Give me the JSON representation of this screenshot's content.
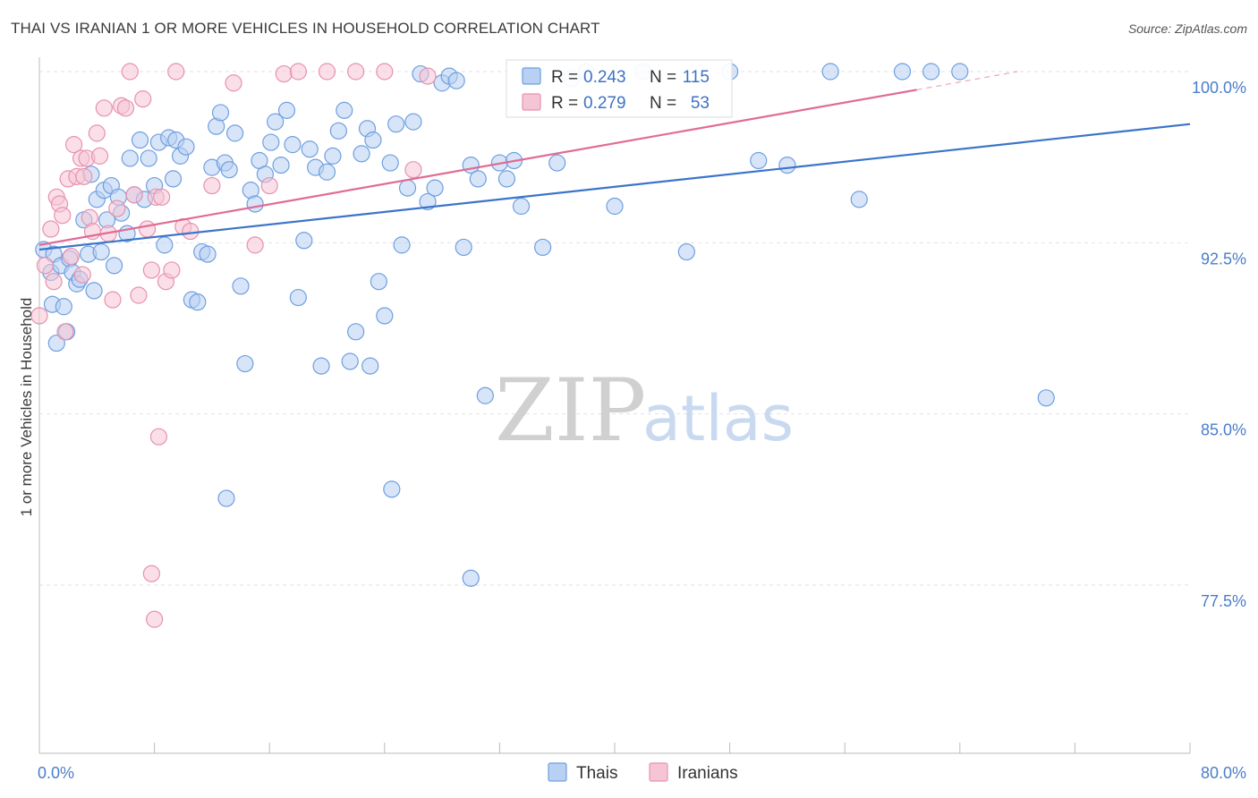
{
  "header": {
    "title": "THAI VS IRANIAN 1 OR MORE VEHICLES IN HOUSEHOLD CORRELATION CHART",
    "source": "Source: ZipAtlas.com"
  },
  "watermark": {
    "zip": "ZIP",
    "atlas": "atlas"
  },
  "chart_data": {
    "type": "scatter",
    "ylabel": "1 or more Vehicles in Household",
    "xlim": [
      0,
      80
    ],
    "ylim": [
      70,
      101.2
    ],
    "x_tick_labels": {
      "min": "0.0%",
      "max": "80.0%"
    },
    "y_ticks": [
      {
        "value": 100,
        "label": "100.0%"
      },
      {
        "value": 92.5,
        "label": "92.5%"
      },
      {
        "value": 85,
        "label": "85.0%"
      },
      {
        "value": 77.5,
        "label": "77.5%"
      }
    ],
    "legend_placement": "bottom-center",
    "stats_box": [
      {
        "series": "Thais",
        "r_label": "R = ",
        "r": "0.243",
        "n_label": "N = ",
        "n": "115"
      },
      {
        "series": "Iranians",
        "r_label": "R = ",
        "r": "0.279",
        "n_label": "N = ",
        "n": "53"
      }
    ],
    "series": [
      {
        "name": "Thais",
        "color": "#6e9fe0",
        "fill": "#b8d0f2",
        "line_color": "#3b74c9",
        "trend": [
          [
            0,
            92.2
          ],
          [
            80,
            97.7
          ]
        ],
        "points": [
          [
            0.3,
            92.2
          ],
          [
            0.8,
            91.2
          ],
          [
            0.9,
            89.8
          ],
          [
            1.0,
            92.0
          ],
          [
            1.2,
            88.1
          ],
          [
            1.5,
            91.5
          ],
          [
            1.7,
            89.7
          ],
          [
            1.9,
            88.6
          ],
          [
            2.1,
            91.8
          ],
          [
            2.3,
            91.2
          ],
          [
            2.6,
            90.7
          ],
          [
            2.8,
            90.9
          ],
          [
            3.1,
            93.5
          ],
          [
            3.4,
            92.0
          ],
          [
            3.6,
            95.5
          ],
          [
            3.8,
            90.4
          ],
          [
            4.0,
            94.4
          ],
          [
            4.3,
            92.1
          ],
          [
            4.5,
            94.8
          ],
          [
            4.7,
            93.5
          ],
          [
            5.0,
            95.0
          ],
          [
            5.2,
            91.5
          ],
          [
            5.5,
            94.5
          ],
          [
            5.7,
            93.8
          ],
          [
            6.1,
            92.9
          ],
          [
            6.3,
            96.2
          ],
          [
            6.6,
            94.6
          ],
          [
            7.0,
            97.0
          ],
          [
            7.3,
            94.4
          ],
          [
            7.6,
            96.2
          ],
          [
            8.0,
            95.0
          ],
          [
            8.3,
            96.9
          ],
          [
            8.7,
            92.4
          ],
          [
            9.0,
            97.1
          ],
          [
            9.3,
            95.3
          ],
          [
            9.5,
            97.0
          ],
          [
            9.8,
            96.3
          ],
          [
            10.2,
            96.7
          ],
          [
            10.6,
            90.0
          ],
          [
            11.0,
            89.9
          ],
          [
            11.3,
            92.1
          ],
          [
            11.7,
            92.0
          ],
          [
            12.0,
            95.8
          ],
          [
            12.3,
            97.6
          ],
          [
            12.6,
            98.2
          ],
          [
            12.9,
            96.0
          ],
          [
            13.2,
            95.7
          ],
          [
            13.6,
            97.3
          ],
          [
            14.0,
            90.6
          ],
          [
            14.3,
            87.2
          ],
          [
            14.7,
            94.8
          ],
          [
            15.0,
            94.2
          ],
          [
            15.3,
            96.1
          ],
          [
            15.7,
            95.5
          ],
          [
            16.1,
            96.9
          ],
          [
            16.4,
            97.8
          ],
          [
            16.8,
            95.9
          ],
          [
            17.2,
            98.3
          ],
          [
            17.6,
            96.8
          ],
          [
            18.0,
            90.1
          ],
          [
            18.4,
            92.6
          ],
          [
            18.8,
            96.6
          ],
          [
            19.2,
            95.8
          ],
          [
            19.6,
            87.1
          ],
          [
            20.0,
            95.6
          ],
          [
            20.4,
            96.3
          ],
          [
            20.8,
            97.4
          ],
          [
            21.2,
            98.3
          ],
          [
            21.6,
            87.3
          ],
          [
            22.0,
            88.6
          ],
          [
            22.4,
            96.4
          ],
          [
            22.8,
            97.5
          ],
          [
            23.2,
            97.0
          ],
          [
            23.6,
            90.8
          ],
          [
            24.0,
            89.3
          ],
          [
            24.4,
            96.0
          ],
          [
            24.8,
            97.7
          ],
          [
            25.2,
            92.4
          ],
          [
            25.6,
            94.9
          ],
          [
            26.0,
            97.8
          ],
          [
            26.5,
            99.9
          ],
          [
            27.0,
            94.3
          ],
          [
            27.5,
            94.9
          ],
          [
            28.0,
            99.5
          ],
          [
            28.5,
            99.8
          ],
          [
            29.0,
            99.6
          ],
          [
            29.5,
            92.3
          ],
          [
            30.0,
            95.9
          ],
          [
            30.5,
            95.3
          ],
          [
            31.0,
            85.8
          ],
          [
            32.0,
            96.0
          ],
          [
            32.5,
            95.3
          ],
          [
            33.0,
            96.1
          ],
          [
            33.5,
            94.1
          ],
          [
            34.0,
            99.9
          ],
          [
            35.0,
            92.3
          ],
          [
            36.0,
            96.0
          ],
          [
            37.0,
            99.7
          ],
          [
            38.0,
            100.0
          ],
          [
            40.0,
            94.1
          ],
          [
            42.0,
            100.0
          ],
          [
            45.0,
            92.1
          ],
          [
            48.0,
            100.0
          ],
          [
            50.0,
            96.1
          ],
          [
            52.0,
            95.9
          ],
          [
            55.0,
            100.0
          ],
          [
            57.0,
            94.4
          ],
          [
            60.0,
            100.0
          ],
          [
            62.0,
            100.0
          ],
          [
            64.0,
            100.0
          ],
          [
            13.0,
            81.3
          ],
          [
            24.5,
            81.7
          ],
          [
            30.0,
            77.8
          ],
          [
            23.0,
            87.1
          ],
          [
            70.0,
            85.7
          ]
        ]
      },
      {
        "name": "Iranians",
        "color": "#e891ae",
        "fill": "#f6c5d5",
        "line_color": "#e06b95",
        "trend": [
          [
            0,
            92.4
          ],
          [
            61,
            99.2
          ]
        ],
        "trend_dashed": [
          [
            61,
            99.2
          ],
          [
            68,
            100.0
          ]
        ],
        "points": [
          [
            0.0,
            89.3
          ],
          [
            0.4,
            91.5
          ],
          [
            0.8,
            93.1
          ],
          [
            1.0,
            90.8
          ],
          [
            1.2,
            94.5
          ],
          [
            1.4,
            94.2
          ],
          [
            1.6,
            93.7
          ],
          [
            1.8,
            88.6
          ],
          [
            2.0,
            95.3
          ],
          [
            2.2,
            91.9
          ],
          [
            2.4,
            96.8
          ],
          [
            2.6,
            95.4
          ],
          [
            2.9,
            96.2
          ],
          [
            3.1,
            95.4
          ],
          [
            3.3,
            96.2
          ],
          [
            3.5,
            93.6
          ],
          [
            3.7,
            93.0
          ],
          [
            4.0,
            97.3
          ],
          [
            4.2,
            96.3
          ],
          [
            4.5,
            98.4
          ],
          [
            4.8,
            92.9
          ],
          [
            5.1,
            90.0
          ],
          [
            5.4,
            94.0
          ],
          [
            5.7,
            98.5
          ],
          [
            6.0,
            98.4
          ],
          [
            6.3,
            100.0
          ],
          [
            6.6,
            94.6
          ],
          [
            6.9,
            90.2
          ],
          [
            7.2,
            98.8
          ],
          [
            7.5,
            93.1
          ],
          [
            7.8,
            91.3
          ],
          [
            8.1,
            94.5
          ],
          [
            8.5,
            94.5
          ],
          [
            8.8,
            90.8
          ],
          [
            9.2,
            91.3
          ],
          [
            9.5,
            100.0
          ],
          [
            10.0,
            93.2
          ],
          [
            10.5,
            93.0
          ],
          [
            12.0,
            95.0
          ],
          [
            13.5,
            99.5
          ],
          [
            15.0,
            92.4
          ],
          [
            16.0,
            95.0
          ],
          [
            17.0,
            99.9
          ],
          [
            26.0,
            95.7
          ],
          [
            27.0,
            99.8
          ],
          [
            18.0,
            100.0
          ],
          [
            20.0,
            100.0
          ],
          [
            22.0,
            100.0
          ],
          [
            24.0,
            100.0
          ],
          [
            8.3,
            84.0
          ],
          [
            7.8,
            78.0
          ],
          [
            8.0,
            76.0
          ],
          [
            3.0,
            91.1
          ]
        ]
      }
    ]
  }
}
